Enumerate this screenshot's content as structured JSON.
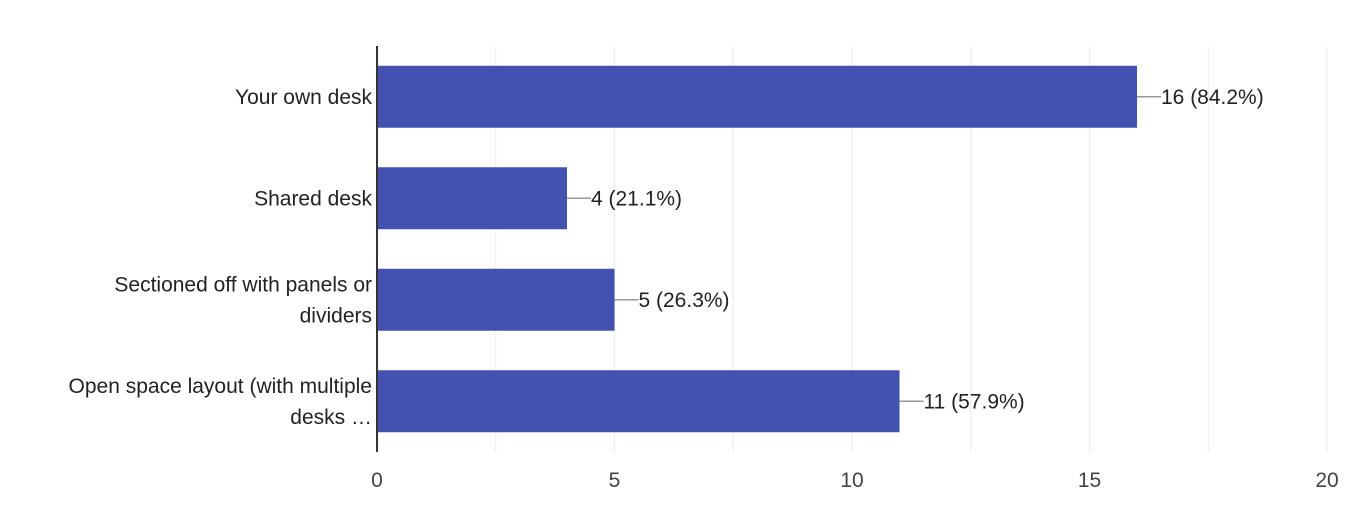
{
  "chart_data": {
    "type": "bar",
    "orientation": "horizontal",
    "categories": [
      [
        "Your own desk"
      ],
      [
        "Shared desk"
      ],
      [
        "Sectioned off with panels or",
        "dividers"
      ],
      [
        "Open space layout (with multiple",
        "desks …"
      ]
    ],
    "values": [
      16,
      4,
      5,
      11
    ],
    "data_labels": [
      "16 (84.2%)",
      "4 (21.1%)",
      "5 (26.3%)",
      "11 (57.9%)"
    ],
    "xlim": [
      0,
      20
    ],
    "xticks": [
      0,
      5,
      10,
      15,
      20
    ],
    "grid": true,
    "colors": {
      "bar": "#4352b1",
      "grid": "#ebebeb",
      "axis": "#333333",
      "leader": "#999999"
    }
  }
}
